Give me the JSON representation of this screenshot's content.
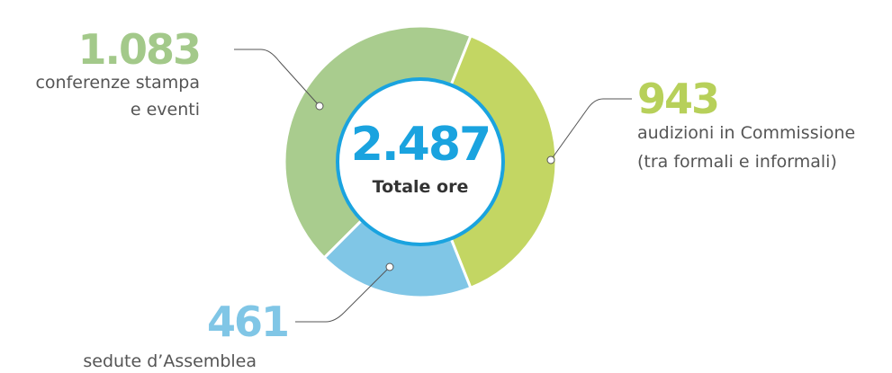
{
  "chart_data": {
    "type": "donut",
    "center_label": "2.487",
    "center_caption": "Totale ore",
    "categories": [
      [
        "conferenze stampa",
        "e eventi"
      ],
      [
        "audizioni in Commissione",
        "(tra formali e informali)"
      ],
      [
        "sedute d’Assemblea"
      ]
    ],
    "values": [
      1083,
      943,
      461
    ],
    "value_labels": [
      "1.083",
      "943",
      "461"
    ],
    "colors": [
      "#a9cc8e",
      "#c3d663",
      "#80c6e6"
    ],
    "label_colors": [
      "#a3c98a",
      "#b7d05a",
      "#80c6e6"
    ],
    "center_color": "#1aa3df"
  }
}
